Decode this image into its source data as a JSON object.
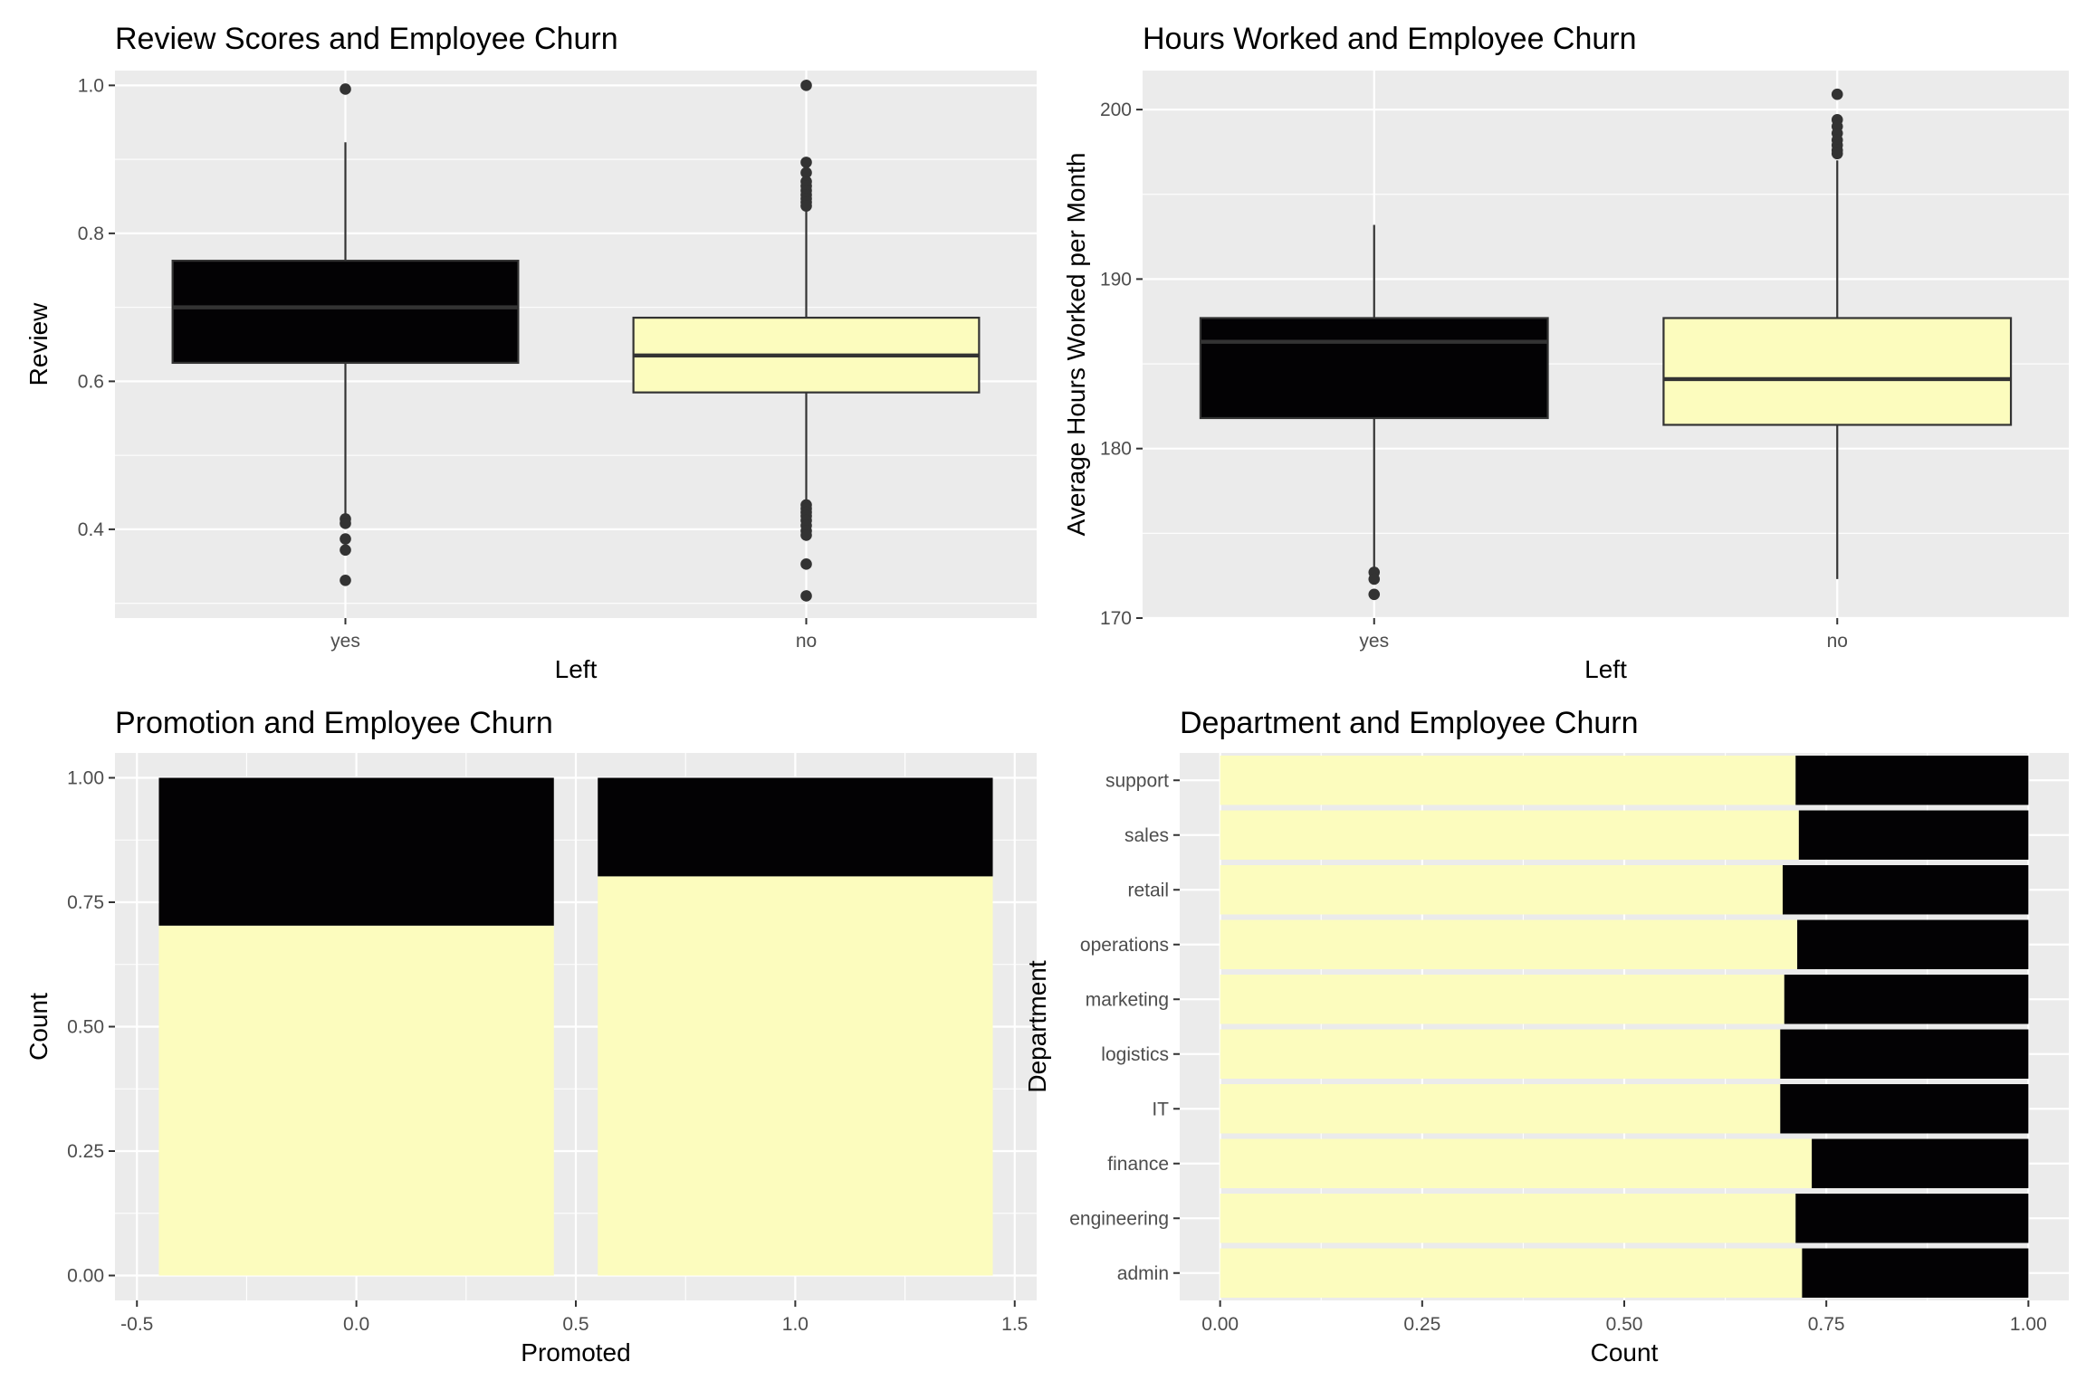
{
  "colors": {
    "panel": "#ebebeb",
    "grid": "#ffffff",
    "yes": "#030204",
    "no": "#fcfcbe",
    "ink": "#333333",
    "tick_text": "#4d4d4d"
  },
  "chart_data": [
    {
      "type": "box",
      "title": "Review Scores and Employee Churn",
      "xlabel": "Left",
      "ylabel": "Review",
      "categories": [
        "yes",
        "no"
      ],
      "ylim": [
        0.28,
        1.02
      ],
      "yticks": [
        0.4,
        0.6,
        0.8,
        1.0
      ],
      "ytick_labels": [
        "0.4",
        "0.6",
        "0.8",
        "1.0"
      ],
      "boxes": [
        {
          "category": "yes",
          "fill": "#030204",
          "median_color": "#333333",
          "whisker_low": 0.42,
          "q1": 0.625,
          "median": 0.7,
          "q3": 0.763,
          "whisker_high": 0.923,
          "outliers": [
            0.995,
            0.414,
            0.408,
            0.387,
            0.372,
            0.331
          ]
        },
        {
          "category": "no",
          "fill": "#fcfcbe",
          "median_color": "#333333",
          "whisker_low": 0.44,
          "q1": 0.585,
          "median": 0.635,
          "q3": 0.686,
          "whisker_high": 0.83,
          "outliers": [
            1.0,
            0.896,
            0.882,
            0.87,
            0.864,
            0.858,
            0.852,
            0.847,
            0.842,
            0.837,
            0.433,
            0.428,
            0.423,
            0.418,
            0.412,
            0.405,
            0.398,
            0.392,
            0.353,
            0.31
          ]
        }
      ]
    },
    {
      "type": "box",
      "title": "Hours Worked and Employee Churn",
      "xlabel": "Left",
      "ylabel": "Average Hours Worked per Month",
      "categories": [
        "yes",
        "no"
      ],
      "ylim": [
        170,
        202.3
      ],
      "yticks": [
        170,
        180,
        190,
        200
      ],
      "ytick_labels": [
        "170",
        "180",
        "190",
        "200"
      ],
      "boxes": [
        {
          "category": "yes",
          "fill": "#030204",
          "median_color": "#333333",
          "whisker_low": 173.0,
          "q1": 181.8,
          "median": 186.3,
          "q3": 187.7,
          "whisker_high": 193.2,
          "outliers": [
            172.7,
            172.3,
            171.4
          ]
        },
        {
          "category": "no",
          "fill": "#fcfcbe",
          "median_color": "#333333",
          "whisker_low": 172.3,
          "q1": 181.4,
          "median": 184.1,
          "q3": 187.7,
          "whisker_high": 197.0,
          "outliers": [
            200.9,
            199.4,
            199.0,
            198.6,
            198.2,
            197.9,
            197.6,
            197.4
          ]
        }
      ]
    },
    {
      "type": "bar",
      "orientation": "vertical",
      "stacked": "fill",
      "title": "Promotion and Employee Churn",
      "xlabel": "Promoted",
      "ylabel": "Count",
      "xlim": [
        -0.55,
        1.55
      ],
      "ylim": [
        0,
        1.0
      ],
      "xticks": [
        -0.5,
        0.0,
        0.5,
        1.0,
        1.5
      ],
      "xtick_labels": [
        "-0.5",
        "0.0",
        "0.5",
        "1.0",
        "1.5"
      ],
      "yticks": [
        0.0,
        0.25,
        0.5,
        0.75,
        1.0
      ],
      "ytick_labels": [
        "0.00",
        "0.25",
        "0.50",
        "0.75",
        "1.00"
      ],
      "bar_width": 0.9,
      "x": [
        0,
        1
      ],
      "series": [
        {
          "key": "no",
          "color": "#fcfcbe",
          "values": [
            0.703,
            0.802
          ]
        },
        {
          "key": "yes",
          "color": "#030204",
          "values": [
            0.297,
            0.198
          ]
        }
      ]
    },
    {
      "type": "bar",
      "orientation": "horizontal",
      "stacked": "fill",
      "title": "Department and Employee Churn",
      "xlabel": "Count",
      "ylabel": "Department",
      "xlim": [
        0,
        1.0
      ],
      "xticks": [
        0.0,
        0.25,
        0.5,
        0.75,
        1.0
      ],
      "xtick_labels": [
        "0.00",
        "0.25",
        "0.50",
        "0.75",
        "1.00"
      ],
      "categories": [
        "admin",
        "engineering",
        "finance",
        "IT",
        "logistics",
        "marketing",
        "operations",
        "retail",
        "sales",
        "support"
      ],
      "series": [
        {
          "key": "no",
          "color": "#fcfcbe",
          "values": [
            0.72,
            0.712,
            0.732,
            0.693,
            0.693,
            0.698,
            0.714,
            0.696,
            0.716,
            0.712
          ]
        },
        {
          "key": "yes",
          "color": "#030204",
          "values": [
            0.28,
            0.288,
            0.268,
            0.307,
            0.307,
            0.302,
            0.286,
            0.304,
            0.284,
            0.288
          ]
        }
      ]
    }
  ]
}
